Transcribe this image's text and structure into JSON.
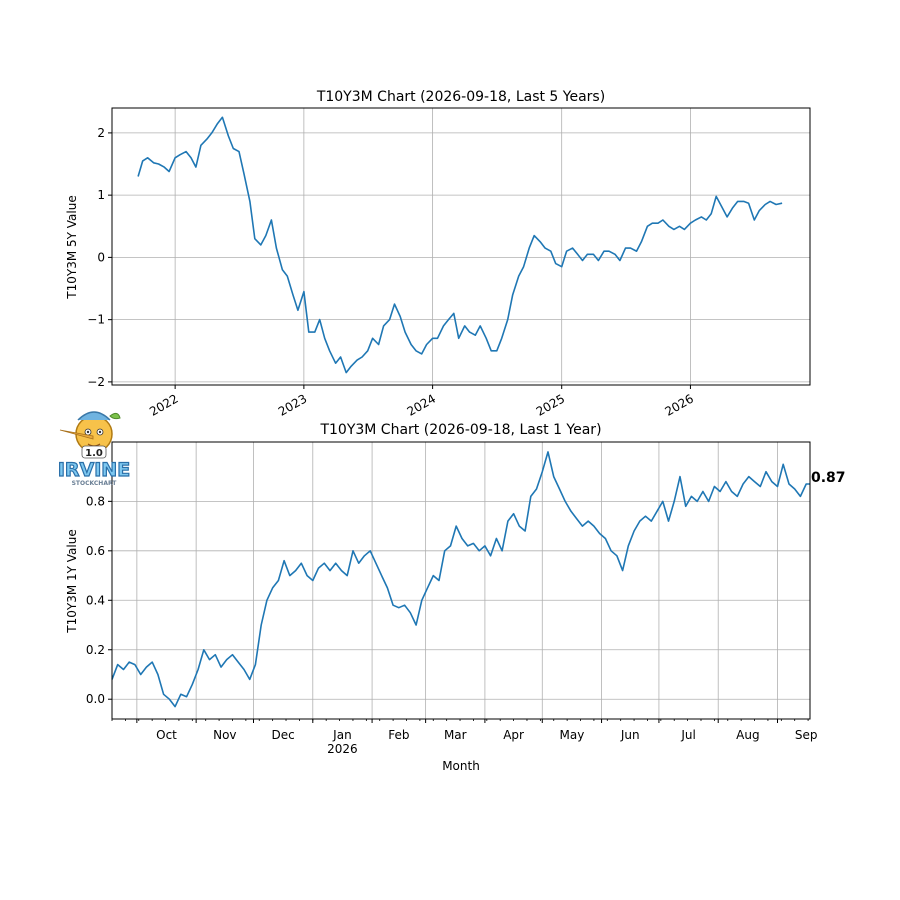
{
  "chart_data": [
    {
      "type": "line",
      "title": "T10Y3M Chart (2026-09-18, Last 5 Years)",
      "xlabel": "",
      "ylabel": "T10Y3M 5Y Value",
      "x_tick_labels": [
        "2022",
        "2023",
        "2024",
        "2025",
        "2026"
      ],
      "y_ticks": [
        -2,
        -1,
        0,
        1,
        2
      ],
      "xlim": [
        "2021-07-06",
        "2026-12-06"
      ],
      "ylim": [
        -2.05,
        2.4
      ],
      "grid": true,
      "line_color": "#1f77b4",
      "series": [
        {
          "x": [
            "2021-09-18",
            "2021-10-01",
            "2021-10-15",
            "2021-11-01",
            "2021-11-15",
            "2021-12-01",
            "2021-12-15",
            "2022-01-01",
            "2022-01-15",
            "2022-02-01",
            "2022-02-15",
            "2022-03-01",
            "2022-03-15",
            "2022-04-01",
            "2022-04-15",
            "2022-05-01",
            "2022-05-15",
            "2022-06-01",
            "2022-06-15",
            "2022-07-01",
            "2022-07-15",
            "2022-08-01",
            "2022-08-15",
            "2022-09-01",
            "2022-09-15",
            "2022-10-01",
            "2022-10-15",
            "2022-11-01",
            "2022-11-15",
            "2022-12-01",
            "2022-12-15",
            "2023-01-01",
            "2023-01-15",
            "2023-02-01",
            "2023-02-15",
            "2023-03-01",
            "2023-03-15",
            "2023-04-01",
            "2023-04-15",
            "2023-05-01",
            "2023-05-15",
            "2023-06-01",
            "2023-06-15",
            "2023-07-01",
            "2023-07-15",
            "2023-08-01",
            "2023-08-15",
            "2023-09-01",
            "2023-09-15",
            "2023-10-01",
            "2023-10-15",
            "2023-11-01",
            "2023-11-15",
            "2023-12-01",
            "2023-12-15",
            "2024-01-01",
            "2024-01-15",
            "2024-02-01",
            "2024-02-15",
            "2024-03-01",
            "2024-03-15",
            "2024-04-01",
            "2024-04-15",
            "2024-05-01",
            "2024-05-15",
            "2024-06-01",
            "2024-06-15",
            "2024-07-01",
            "2024-07-15",
            "2024-08-01",
            "2024-08-15",
            "2024-09-01",
            "2024-09-15",
            "2024-10-01",
            "2024-10-15",
            "2024-11-01",
            "2024-11-15",
            "2024-12-01",
            "2024-12-15",
            "2025-01-01",
            "2025-01-15",
            "2025-02-01",
            "2025-02-15",
            "2025-03-01",
            "2025-03-15",
            "2025-04-01",
            "2025-04-15",
            "2025-05-01",
            "2025-05-15",
            "2025-06-01",
            "2025-06-15",
            "2025-07-01",
            "2025-07-15",
            "2025-08-01",
            "2025-08-15",
            "2025-09-01",
            "2025-09-15",
            "2025-10-01",
            "2025-10-15",
            "2025-11-01",
            "2025-11-15",
            "2025-12-01",
            "2025-12-15",
            "2026-01-01",
            "2026-01-15",
            "2026-02-01",
            "2026-02-15",
            "2026-03-01",
            "2026-03-15",
            "2026-04-01",
            "2026-04-15",
            "2026-05-01",
            "2026-05-15",
            "2026-06-01",
            "2026-06-15",
            "2026-07-01",
            "2026-07-15",
            "2026-08-01",
            "2026-08-15",
            "2026-09-01",
            "2026-09-18"
          ],
          "values": [
            1.3,
            1.55,
            1.6,
            1.52,
            1.5,
            1.45,
            1.38,
            1.6,
            1.65,
            1.7,
            1.6,
            1.45,
            1.8,
            1.9,
            2.0,
            2.15,
            2.25,
            1.95,
            1.75,
            1.7,
            1.35,
            0.9,
            0.3,
            0.2,
            0.35,
            0.6,
            0.15,
            -0.2,
            -0.3,
            -0.6,
            -0.85,
            -0.55,
            -1.2,
            -1.2,
            -1.0,
            -1.3,
            -1.5,
            -1.7,
            -1.6,
            -1.85,
            -1.75,
            -1.65,
            -1.6,
            -1.5,
            -1.3,
            -1.4,
            -1.1,
            -1.0,
            -0.75,
            -0.95,
            -1.2,
            -1.4,
            -1.5,
            -1.55,
            -1.4,
            -1.3,
            -1.3,
            -1.1,
            -1.0,
            -0.9,
            -1.3,
            -1.1,
            -1.2,
            -1.25,
            -1.1,
            -1.3,
            -1.5,
            -1.5,
            -1.3,
            -1.0,
            -0.6,
            -0.3,
            -0.15,
            0.15,
            0.35,
            0.25,
            0.15,
            0.1,
            -0.1,
            -0.15,
            0.1,
            0.15,
            0.05,
            -0.05,
            0.05,
            0.05,
            -0.05,
            0.1,
            0.1,
            0.05,
            -0.05,
            0.15,
            0.15,
            0.1,
            0.25,
            0.5,
            0.55,
            0.55,
            0.6,
            0.5,
            0.45,
            0.5,
            0.45,
            0.55,
            0.6,
            0.65,
            0.6,
            0.7,
            0.98,
            0.8,
            0.65,
            0.8,
            0.9,
            0.9,
            0.87,
            0.6,
            0.75,
            0.85,
            0.9,
            0.85,
            0.87
          ]
        }
      ]
    },
    {
      "type": "line",
      "title": "T10Y3M Chart (2026-09-18, Last 1 Year)",
      "xlabel": "Month",
      "ylabel": "T10Y3M 1Y Value",
      "x_tick_labels": [
        "Oct",
        "Nov",
        "Dec",
        "Jan\n2026",
        "Feb",
        "Mar",
        "Apr",
        "May",
        "Jun",
        "Jul",
        "Aug",
        "Sep"
      ],
      "y_ticks": [
        0.0,
        0.2,
        0.4,
        0.6,
        0.8
      ],
      "xlim": [
        "2025-09-18",
        "2026-09-18"
      ],
      "ylim": [
        -0.08,
        1.04
      ],
      "grid": true,
      "line_color": "#1f77b4",
      "last_value_label": "0.87",
      "series": [
        {
          "x": [
            "2025-09-18",
            "2025-09-21",
            "2025-09-24",
            "2025-09-27",
            "2025-09-30",
            "2025-10-03",
            "2025-10-06",
            "2025-10-09",
            "2025-10-12",
            "2025-10-15",
            "2025-10-18",
            "2025-10-21",
            "2025-10-24",
            "2025-10-27",
            "2025-10-30",
            "2025-11-02",
            "2025-11-05",
            "2025-11-08",
            "2025-11-11",
            "2025-11-14",
            "2025-11-17",
            "2025-11-20",
            "2025-11-23",
            "2025-11-26",
            "2025-11-29",
            "2025-12-02",
            "2025-12-05",
            "2025-12-08",
            "2025-12-11",
            "2025-12-14",
            "2025-12-17",
            "2025-12-20",
            "2025-12-23",
            "2025-12-26",
            "2025-12-29",
            "2026-01-01",
            "2026-01-04",
            "2026-01-07",
            "2026-01-10",
            "2026-01-13",
            "2026-01-16",
            "2026-01-19",
            "2026-01-22",
            "2026-01-25",
            "2026-01-28",
            "2026-01-31",
            "2026-02-03",
            "2026-02-06",
            "2026-02-09",
            "2026-02-12",
            "2026-02-15",
            "2026-02-18",
            "2026-02-21",
            "2026-02-24",
            "2026-02-27",
            "2026-03-02",
            "2026-03-05",
            "2026-03-08",
            "2026-03-11",
            "2026-03-14",
            "2026-03-17",
            "2026-03-20",
            "2026-03-23",
            "2026-03-26",
            "2026-03-29",
            "2026-04-01",
            "2026-04-04",
            "2026-04-07",
            "2026-04-10",
            "2026-04-13",
            "2026-04-16",
            "2026-04-19",
            "2026-04-22",
            "2026-04-25",
            "2026-04-28",
            "2026-05-01",
            "2026-05-04",
            "2026-05-07",
            "2026-05-10",
            "2026-05-13",
            "2026-05-16",
            "2026-05-19",
            "2026-05-22",
            "2026-05-25",
            "2026-05-28",
            "2026-05-31",
            "2026-06-03",
            "2026-06-06",
            "2026-06-09",
            "2026-06-12",
            "2026-06-15",
            "2026-06-18",
            "2026-06-21",
            "2026-06-24",
            "2026-06-27",
            "2026-06-30",
            "2026-07-03",
            "2026-07-06",
            "2026-07-09",
            "2026-07-12",
            "2026-07-15",
            "2026-07-18",
            "2026-07-21",
            "2026-07-24",
            "2026-07-27",
            "2026-07-30",
            "2026-08-02",
            "2026-08-05",
            "2026-08-08",
            "2026-08-11",
            "2026-08-14",
            "2026-08-17",
            "2026-08-20",
            "2026-08-23",
            "2026-08-26",
            "2026-08-29",
            "2026-09-01",
            "2026-09-04",
            "2026-09-07",
            "2026-09-10",
            "2026-09-13",
            "2026-09-16",
            "2026-09-18"
          ],
          "values": [
            0.08,
            0.14,
            0.12,
            0.15,
            0.14,
            0.1,
            0.13,
            0.15,
            0.1,
            0.02,
            0.0,
            -0.03,
            0.02,
            0.01,
            0.06,
            0.12,
            0.2,
            0.16,
            0.18,
            0.13,
            0.16,
            0.18,
            0.15,
            0.12,
            0.08,
            0.14,
            0.3,
            0.4,
            0.45,
            0.48,
            0.56,
            0.5,
            0.52,
            0.55,
            0.5,
            0.48,
            0.53,
            0.55,
            0.52,
            0.55,
            0.52,
            0.5,
            0.6,
            0.55,
            0.58,
            0.6,
            0.55,
            0.5,
            0.45,
            0.38,
            0.37,
            0.38,
            0.35,
            0.3,
            0.4,
            0.45,
            0.5,
            0.48,
            0.6,
            0.62,
            0.7,
            0.65,
            0.62,
            0.63,
            0.6,
            0.62,
            0.58,
            0.65,
            0.6,
            0.72,
            0.75,
            0.7,
            0.68,
            0.82,
            0.85,
            0.92,
            1.0,
            0.9,
            0.85,
            0.8,
            0.76,
            0.73,
            0.7,
            0.72,
            0.7,
            0.67,
            0.65,
            0.6,
            0.58,
            0.52,
            0.62,
            0.68,
            0.72,
            0.74,
            0.72,
            0.76,
            0.8,
            0.72,
            0.8,
            0.9,
            0.78,
            0.82,
            0.8,
            0.84,
            0.8,
            0.86,
            0.84,
            0.88,
            0.84,
            0.82,
            0.87,
            0.9,
            0.88,
            0.86,
            0.92,
            0.88,
            0.86,
            0.95,
            0.87,
            0.85,
            0.82,
            0.87,
            0.87
          ]
        }
      ]
    }
  ],
  "logo": {
    "badge_text": "1.0",
    "brand_text": "IRVINE",
    "sub_text": "STOCKCHART"
  }
}
